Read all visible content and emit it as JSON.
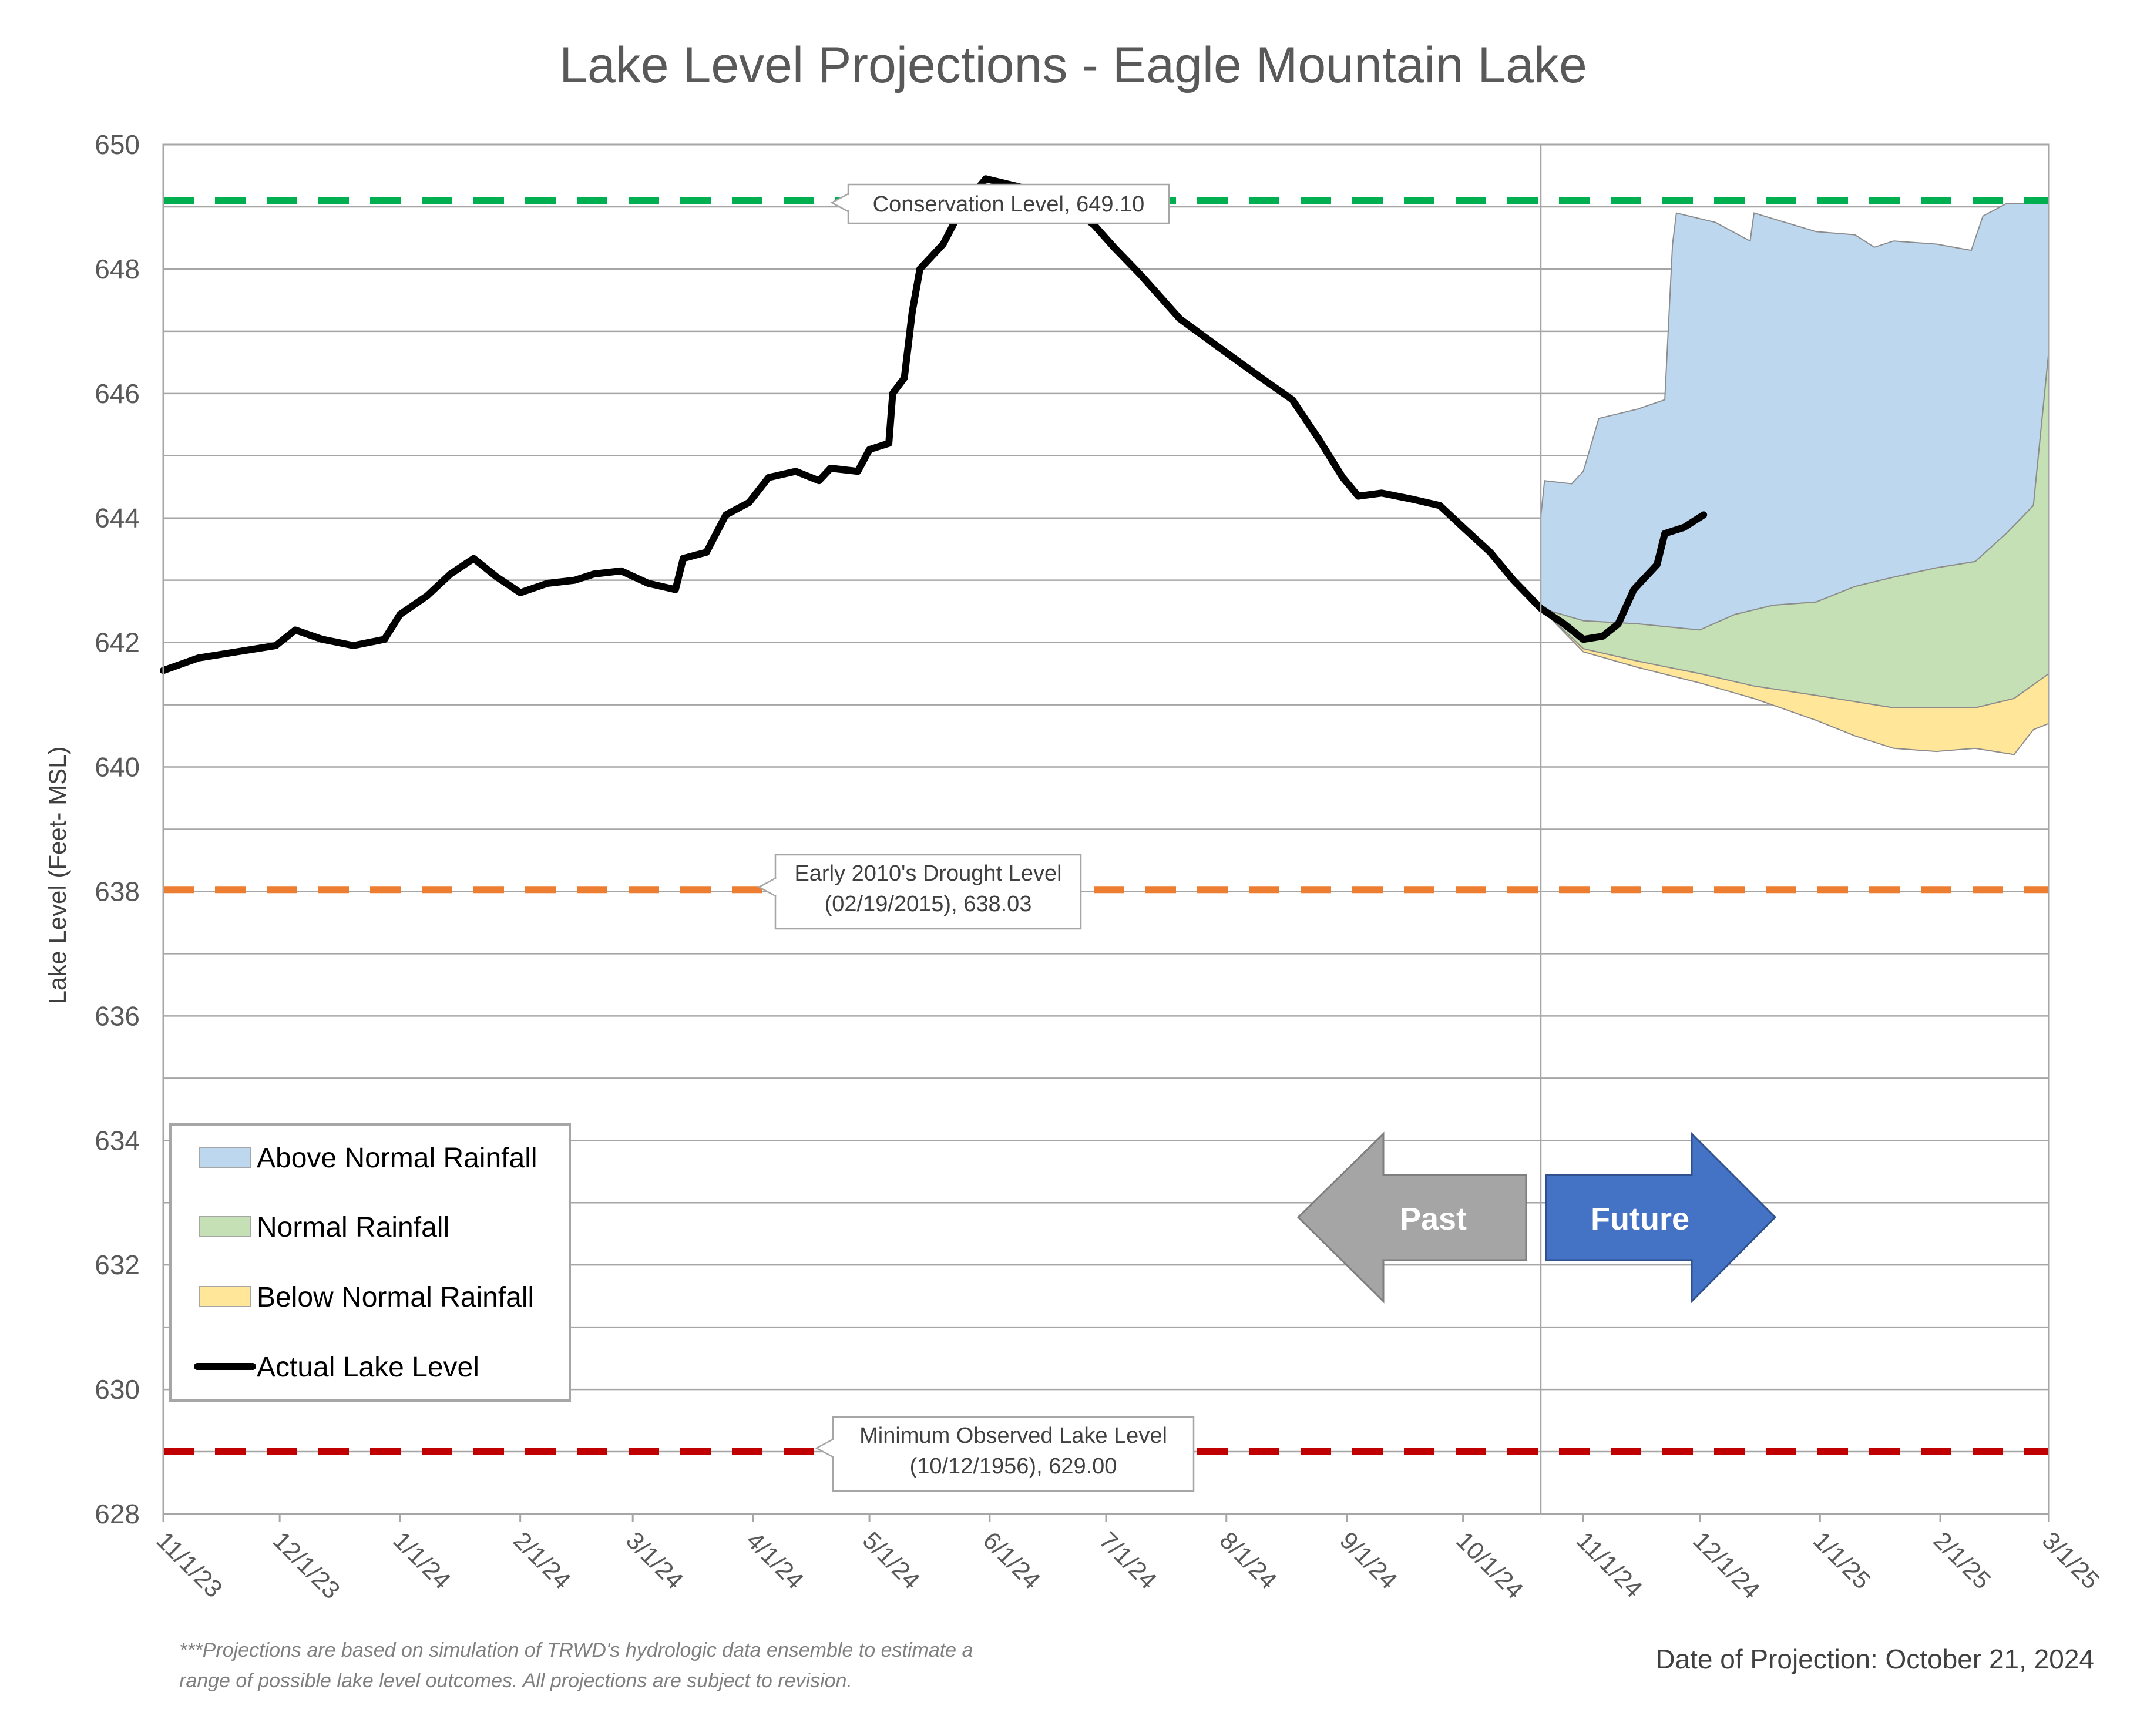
{
  "chart_data": {
    "type": "area",
    "title": "Lake Level Projections - Eagle Mountain Lake",
    "ylabel": "Lake Level (Feet- MSL)",
    "xlabel": "",
    "ylim": [
      628,
      650
    ],
    "yticks": [
      "628",
      "630",
      "632",
      "634",
      "636",
      "638",
      "640",
      "642",
      "644",
      "646",
      "648",
      "650"
    ],
    "xlim": [
      "2023-11-01",
      "2025-03-01"
    ],
    "xticks": [
      "11/1/23",
      "12/1/23",
      "1/1/24",
      "2/1/24",
      "3/1/24",
      "4/1/24",
      "5/1/24",
      "6/1/24",
      "7/1/24",
      "8/1/24",
      "9/1/24",
      "10/1/24",
      "11/1/24",
      "12/1/24",
      "1/1/25",
      "2/1/25",
      "3/1/25"
    ],
    "grid": true,
    "legend_position": "bottom-left",
    "projection_date_marker": "2024-10-21",
    "reference_lines": [
      {
        "name": "Conservation Level",
        "value": 649.1,
        "color": "#00B050",
        "label_lines": [
          "Conservation Level, 649.10"
        ]
      },
      {
        "name": "Early 2010's Drought Level",
        "value": 638.03,
        "color": "#ED7D31",
        "label_lines": [
          "Early 2010's Drought Level",
          "(02/19/2015), 638.03"
        ]
      },
      {
        "name": "Minimum Observed Lake Level",
        "value": 629.0,
        "color": "#C00000",
        "label_lines": [
          "Minimum Observed Lake Level",
          "(10/12/1956), 629.00"
        ]
      }
    ],
    "series": [
      {
        "name": "Actual Lake Level",
        "type": "line",
        "color": "#000000",
        "points": [
          [
            "2023-11-01",
            641.55
          ],
          [
            "2023-11-10",
            641.75
          ],
          [
            "2023-11-20",
            641.85
          ],
          [
            "2023-11-30",
            641.95
          ],
          [
            "2023-12-05",
            642.2
          ],
          [
            "2023-12-12",
            642.05
          ],
          [
            "2023-12-20",
            641.95
          ],
          [
            "2023-12-28",
            642.05
          ],
          [
            "2024-01-01",
            642.45
          ],
          [
            "2024-01-08",
            642.75
          ],
          [
            "2024-01-14",
            643.1
          ],
          [
            "2024-01-20",
            643.35
          ],
          [
            "2024-01-26",
            643.05
          ],
          [
            "2024-02-01",
            642.8
          ],
          [
            "2024-02-08",
            642.95
          ],
          [
            "2024-02-15",
            643.0
          ],
          [
            "2024-02-20",
            643.1
          ],
          [
            "2024-02-27",
            643.15
          ],
          [
            "2024-03-05",
            642.95
          ],
          [
            "2024-03-12",
            642.85
          ],
          [
            "2024-03-14",
            643.35
          ],
          [
            "2024-03-20",
            643.45
          ],
          [
            "2024-03-25",
            644.05
          ],
          [
            "2024-03-31",
            644.25
          ],
          [
            "2024-04-05",
            644.65
          ],
          [
            "2024-04-12",
            644.75
          ],
          [
            "2024-04-18",
            644.6
          ],
          [
            "2024-04-21",
            644.8
          ],
          [
            "2024-04-28",
            644.75
          ],
          [
            "2024-05-01",
            645.1
          ],
          [
            "2024-05-06",
            645.2
          ],
          [
            "2024-05-07",
            646.0
          ],
          [
            "2024-05-10",
            646.25
          ],
          [
            "2024-05-12",
            647.3
          ],
          [
            "2024-05-14",
            648.0
          ],
          [
            "2024-05-20",
            648.4
          ],
          [
            "2024-05-25",
            649.0
          ],
          [
            "2024-05-31",
            649.45
          ],
          [
            "2024-06-10",
            649.3
          ],
          [
            "2024-06-20",
            649.1
          ],
          [
            "2024-06-28",
            648.7
          ],
          [
            "2024-07-03",
            648.35
          ],
          [
            "2024-07-10",
            647.9
          ],
          [
            "2024-07-20",
            647.2
          ],
          [
            "2024-07-31",
            646.7
          ],
          [
            "2024-08-10",
            646.25
          ],
          [
            "2024-08-18",
            645.9
          ],
          [
            "2024-08-25",
            645.25
          ],
          [
            "2024-08-31",
            644.65
          ],
          [
            "2024-09-04",
            644.35
          ],
          [
            "2024-09-10",
            644.4
          ],
          [
            "2024-09-18",
            644.3
          ],
          [
            "2024-09-25",
            644.2
          ],
          [
            "2024-10-01",
            643.85
          ],
          [
            "2024-10-08",
            643.45
          ],
          [
            "2024-10-14",
            643.0
          ],
          [
            "2024-10-21",
            642.55
          ],
          [
            "2024-10-27",
            642.3
          ],
          [
            "2024-11-01",
            642.05
          ],
          [
            "2024-11-06",
            642.1
          ],
          [
            "2024-11-10",
            642.3
          ],
          [
            "2024-11-14",
            642.85
          ],
          [
            "2024-11-20",
            643.25
          ],
          [
            "2024-11-22",
            643.75
          ],
          [
            "2024-11-27",
            643.85
          ],
          [
            "2024-12-02",
            644.05
          ]
        ]
      },
      {
        "name": "Above Normal Rainfall",
        "type": "band",
        "color": "#BDD7EE",
        "lower": [
          [
            "2024-10-21",
            642.55
          ],
          [
            "2024-11-01",
            642.35
          ],
          [
            "2024-11-15",
            642.3
          ],
          [
            "2024-12-01",
            642.2
          ],
          [
            "2024-12-10",
            642.45
          ],
          [
            "2024-12-20",
            642.6
          ],
          [
            "2024-12-31",
            642.65
          ],
          [
            "2025-01-10",
            642.9
          ],
          [
            "2025-01-20",
            643.05
          ],
          [
            "2025-01-31",
            643.2
          ],
          [
            "2025-02-10",
            643.3
          ],
          [
            "2025-02-18",
            643.75
          ],
          [
            "2025-02-25",
            644.2
          ],
          [
            "2025-03-01",
            646.7
          ]
        ],
        "upper": [
          [
            "2024-10-21",
            644.0
          ],
          [
            "2024-10-22",
            644.6
          ],
          [
            "2024-10-29",
            644.55
          ],
          [
            "2024-11-01",
            644.75
          ],
          [
            "2024-11-05",
            645.6
          ],
          [
            "2024-11-15",
            645.75
          ],
          [
            "2024-11-22",
            645.9
          ],
          [
            "2024-11-24",
            648.4
          ],
          [
            "2024-11-25",
            648.9
          ],
          [
            "2024-12-05",
            648.75
          ],
          [
            "2024-12-14",
            648.45
          ],
          [
            "2024-12-15",
            648.9
          ],
          [
            "2024-12-31",
            648.6
          ],
          [
            "2025-01-10",
            648.55
          ],
          [
            "2025-01-15",
            648.35
          ],
          [
            "2025-01-20",
            648.45
          ],
          [
            "2025-01-31",
            648.4
          ],
          [
            "2025-02-09",
            648.3
          ],
          [
            "2025-02-12",
            648.85
          ],
          [
            "2025-02-18",
            649.05
          ],
          [
            "2025-03-01",
            649.05
          ]
        ]
      },
      {
        "name": "Normal Rainfall",
        "type": "band",
        "color": "#C5E0B4",
        "lower": [
          [
            "2024-10-21",
            642.55
          ],
          [
            "2024-11-01",
            641.9
          ],
          [
            "2024-11-15",
            641.7
          ],
          [
            "2024-12-01",
            641.5
          ],
          [
            "2024-12-15",
            641.3
          ],
          [
            "2024-12-31",
            641.15
          ],
          [
            "2025-01-10",
            641.05
          ],
          [
            "2025-01-20",
            640.95
          ],
          [
            "2025-01-31",
            640.95
          ],
          [
            "2025-02-10",
            640.95
          ],
          [
            "2025-02-20",
            641.1
          ],
          [
            "2025-03-01",
            641.5
          ]
        ],
        "upper": [
          [
            "2024-10-21",
            642.55
          ],
          [
            "2024-11-01",
            642.35
          ],
          [
            "2024-11-15",
            642.3
          ],
          [
            "2024-12-01",
            642.2
          ],
          [
            "2024-12-10",
            642.45
          ],
          [
            "2024-12-20",
            642.6
          ],
          [
            "2024-12-31",
            642.65
          ],
          [
            "2025-01-10",
            642.9
          ],
          [
            "2025-01-20",
            643.05
          ],
          [
            "2025-01-31",
            643.2
          ],
          [
            "2025-02-10",
            643.3
          ],
          [
            "2025-02-18",
            643.75
          ],
          [
            "2025-02-25",
            644.2
          ],
          [
            "2025-03-01",
            646.7
          ]
        ]
      },
      {
        "name": "Below Normal Rainfall",
        "type": "band",
        "color": "#FFE699",
        "lower": [
          [
            "2024-10-21",
            642.55
          ],
          [
            "2024-11-01",
            641.85
          ],
          [
            "2024-11-15",
            641.6
          ],
          [
            "2024-12-01",
            641.35
          ],
          [
            "2024-12-15",
            641.1
          ],
          [
            "2024-12-31",
            640.75
          ],
          [
            "2025-01-10",
            640.5
          ],
          [
            "2025-01-20",
            640.3
          ],
          [
            "2025-01-31",
            640.25
          ],
          [
            "2025-02-10",
            640.3
          ],
          [
            "2025-02-20",
            640.2
          ],
          [
            "2025-02-25",
            640.6
          ],
          [
            "2025-03-01",
            640.7
          ]
        ],
        "upper": [
          [
            "2024-10-21",
            642.55
          ],
          [
            "2024-11-01",
            641.9
          ],
          [
            "2024-11-15",
            641.7
          ],
          [
            "2024-12-01",
            641.5
          ],
          [
            "2024-12-15",
            641.3
          ],
          [
            "2024-12-31",
            641.15
          ],
          [
            "2025-01-10",
            641.05
          ],
          [
            "2025-01-20",
            640.95
          ],
          [
            "2025-01-31",
            640.95
          ],
          [
            "2025-02-10",
            640.95
          ],
          [
            "2025-02-20",
            641.1
          ],
          [
            "2025-03-01",
            641.5
          ]
        ]
      }
    ],
    "legend": [
      {
        "label": "Above Normal Rainfall",
        "kind": "box",
        "color": "#BDD7EE"
      },
      {
        "label": "Normal Rainfall",
        "kind": "box",
        "color": "#C5E0B4"
      },
      {
        "label": "Below Normal Rainfall",
        "kind": "box",
        "color": "#FFE699"
      },
      {
        "label": "Actual Lake Level",
        "kind": "line",
        "color": "#000000"
      }
    ],
    "arrows": {
      "past": "Past",
      "future": "Future",
      "past_color": "#A5A5A5",
      "future_color": "#4472C4"
    },
    "footnote": [
      "***Projections are based on simulation of TRWD's hydrologic data ensemble to estimate a",
      "range of possible lake level outcomes.  All projections are subject to revision."
    ],
    "projection_date_text": "Date of Projection: October 21, 2024"
  }
}
